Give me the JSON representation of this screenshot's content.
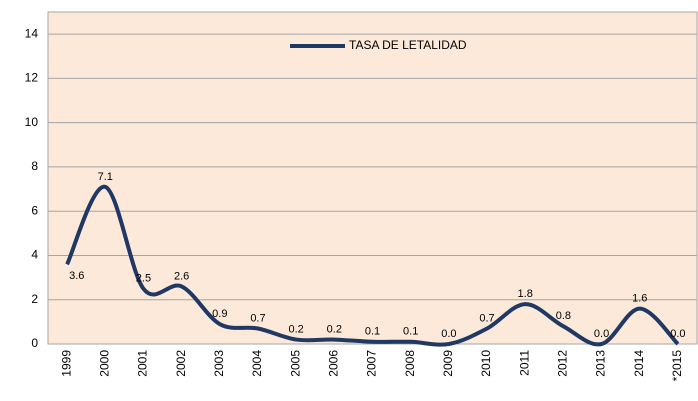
{
  "chart_data": {
    "type": "line",
    "categories": [
      "1999",
      "2000",
      "2001",
      "2002",
      "2003",
      "2004",
      "2005",
      "2006",
      "2007",
      "2008",
      "2009",
      "2010",
      "2011",
      "2012",
      "2013",
      "2014",
      "*2015"
    ],
    "series": [
      {
        "name": "TASA DE LETALIDAD",
        "color": "#1f3864",
        "values": [
          3.6,
          7.1,
          2.5,
          2.6,
          0.9,
          0.7,
          0.2,
          0.2,
          0.1,
          0.1,
          0.0,
          0.7,
          1.8,
          0.8,
          0.0,
          1.6,
          0.0
        ],
        "value_labels": [
          "3.6",
          "7.1",
          "2.5",
          "2.6",
          "0.9",
          "0.7",
          "0.2",
          "0.2",
          "0.1",
          "0.1",
          "0.0",
          "0.7",
          "1.8",
          "0.8",
          "0.0",
          "1.6",
          "0.0"
        ]
      }
    ],
    "ylim": [
      0,
      15
    ],
    "yticks": [
      0,
      2,
      4,
      6,
      8,
      10,
      12,
      14
    ],
    "grid": true,
    "legend": "top"
  }
}
